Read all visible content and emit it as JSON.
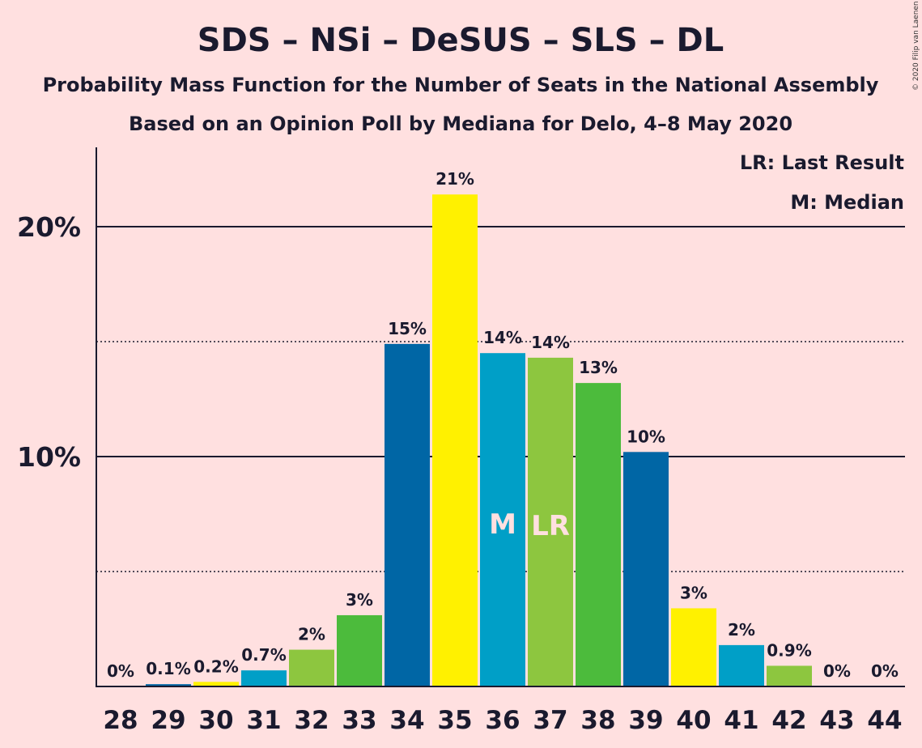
{
  "title": "SDS – NSi – DeSUS – SLS – DL",
  "subtitle1": "Probability Mass Function for the Number of Seats in the National Assembly",
  "subtitle2": "Based on an Opinion Poll by Mediana for Delo, 4–8 May 2020",
  "copyright": "© 2020 Filip van Laenen",
  "legend": {
    "lr": "LR: Last Result",
    "m": "M: Median"
  },
  "colors": {
    "background": "#ffe0e0",
    "dark_blue": "#0066a5",
    "yellow": "#fff100",
    "cyan": "#009fc7",
    "light_green": "#8dc63f",
    "green": "#4cbb3c"
  },
  "chart_data": {
    "type": "bar",
    "categories": [
      "28",
      "29",
      "30",
      "31",
      "32",
      "33",
      "34",
      "35",
      "36",
      "37",
      "38",
      "39",
      "40",
      "41",
      "42",
      "43",
      "44"
    ],
    "values": [
      0,
      0.1,
      0.2,
      0.7,
      1.6,
      3.1,
      14.9,
      21.4,
      14.5,
      14.3,
      13.2,
      10.2,
      3.4,
      1.8,
      0.9,
      0,
      0
    ],
    "labels": [
      "0%",
      "0.1%",
      "0.2%",
      "0.7%",
      "2%",
      "3%",
      "15%",
      "21%",
      "14%",
      "14%",
      "13%",
      "10%",
      "3%",
      "2%",
      "0.9%",
      "0%",
      "0%"
    ],
    "bar_colors": [
      "#0066a5",
      "#0066a5",
      "#fff100",
      "#009fc7",
      "#8dc63f",
      "#4cbb3c",
      "#0066a5",
      "#fff100",
      "#009fc7",
      "#8dc63f",
      "#4cbb3c",
      "#0066a5",
      "#fff100",
      "#009fc7",
      "#8dc63f",
      "#4cbb3c",
      "#0066a5"
    ],
    "median_seat": "36",
    "last_result_seat": "37",
    "median_marker": "M",
    "last_result_marker": "LR",
    "yticks": [
      10,
      20
    ],
    "ytick_labels": [
      "10%",
      "20%"
    ],
    "ylim": [
      0,
      23.5
    ],
    "minor_gridlines": [
      5,
      15
    ],
    "xlabel": "",
    "ylabel": "",
    "grid": true,
    "legend_position": "top-right"
  }
}
